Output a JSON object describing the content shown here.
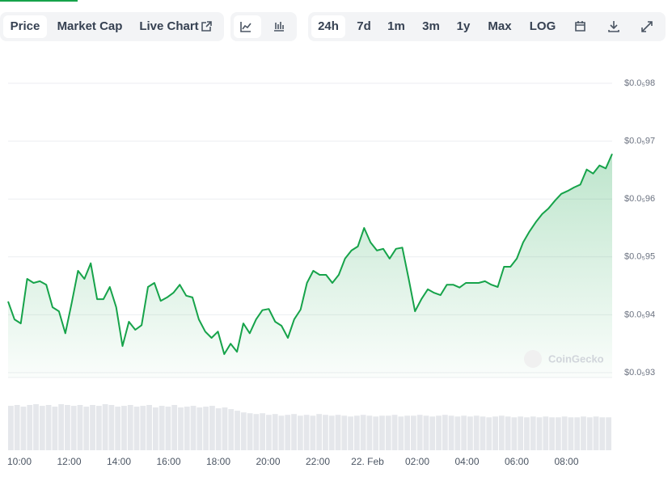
{
  "toolbar": {
    "tabs": [
      "Price",
      "Market Cap",
      "Live Chart"
    ],
    "ranges": [
      "24h",
      "7d",
      "1m",
      "3m",
      "1y",
      "Max",
      "LOG"
    ]
  },
  "chart_data": {
    "type": "line",
    "watermark": "CoinGecko",
    "color": "#16a34a",
    "x_labels": [
      "10:00",
      "12:00",
      "14:00",
      "16:00",
      "18:00",
      "20:00",
      "22:00",
      "22. Feb",
      "02:00",
      "04:00",
      "06:00",
      "08:00"
    ],
    "ylim": [
      9.3e-07,
      9.8e-07
    ],
    "yticks": [
      {
        "value": 9.8e-07,
        "label": "$0.0₅98"
      },
      {
        "value": 9.7e-07,
        "label": "$0.0₅97"
      },
      {
        "value": 9.6e-07,
        "label": "$0.0₅96"
      },
      {
        "value": 9.5e-07,
        "label": "$0.0₅95"
      },
      {
        "value": 9.4e-07,
        "label": "$0.0₅94"
      },
      {
        "value": 9.3e-07,
        "label": "$0.0₅93"
      }
    ],
    "grid": true,
    "series": [
      {
        "name": "Price",
        "color": "#16a34a",
        "values": [
          9.423e-07,
          9.392e-07,
          9.385e-07,
          9.462e-07,
          9.455e-07,
          9.458e-07,
          9.452e-07,
          9.413e-07,
          9.406e-07,
          9.368e-07,
          9.42e-07,
          9.476e-07,
          9.462e-07,
          9.489e-07,
          9.427e-07,
          9.427e-07,
          9.448e-07,
          9.413e-07,
          9.346e-07,
          9.388e-07,
          9.374e-07,
          9.382e-07,
          9.448e-07,
          9.455e-07,
          9.424e-07,
          9.43e-07,
          9.438e-07,
          9.452e-07,
          9.433e-07,
          9.43e-07,
          9.392e-07,
          9.371e-07,
          9.36e-07,
          9.371e-07,
          9.332e-07,
          9.35e-07,
          9.336e-07,
          9.385e-07,
          9.368e-07,
          9.392e-07,
          9.408e-07,
          9.41e-07,
          9.388e-07,
          9.381e-07,
          9.36e-07,
          9.392e-07,
          9.409e-07,
          9.455e-07,
          9.476e-07,
          9.469e-07,
          9.469e-07,
          9.455e-07,
          9.469e-07,
          9.497e-07,
          9.511e-07,
          9.518e-07,
          9.55e-07,
          9.525e-07,
          9.511e-07,
          9.514e-07,
          9.497e-07,
          9.514e-07,
          9.516e-07,
          9.462e-07,
          9.406e-07,
          9.427e-07,
          9.444e-07,
          9.438e-07,
          9.434e-07,
          9.452e-07,
          9.452e-07,
          9.447e-07,
          9.455e-07,
          9.455e-07,
          9.455e-07,
          9.458e-07,
          9.452e-07,
          9.448e-07,
          9.483e-07,
          9.483e-07,
          9.497e-07,
          9.525e-07,
          9.544e-07,
          9.56e-07,
          9.574e-07,
          9.584e-07,
          9.597e-07,
          9.609e-07,
          9.614e-07,
          9.62e-07,
          9.625e-07,
          9.651e-07,
          9.644e-07,
          9.658e-07,
          9.653e-07,
          9.678e-07
        ]
      }
    ],
    "volume": {
      "color": "#e5e7eb",
      "values": [
        54,
        55,
        53,
        55,
        56,
        54,
        55,
        53,
        56,
        55,
        54,
        55,
        53,
        55,
        54,
        56,
        55,
        53,
        54,
        55,
        53,
        54,
        55,
        52,
        54,
        53,
        55,
        52,
        53,
        54,
        52,
        53,
        54,
        51,
        52,
        50,
        48,
        46,
        45,
        44,
        45,
        43,
        44,
        42,
        43,
        44,
        42,
        43,
        42,
        44,
        43,
        42,
        43,
        42,
        41,
        42,
        43,
        42,
        41,
        42,
        42,
        43,
        41,
        42,
        42,
        43,
        42,
        41,
        42,
        43,
        42,
        41,
        42,
        41,
        42,
        41,
        40,
        41,
        42,
        41,
        40,
        41,
        40,
        41,
        40,
        41,
        40,
        40,
        41,
        40,
        40,
        41,
        40,
        41,
        40,
        40
      ]
    }
  }
}
